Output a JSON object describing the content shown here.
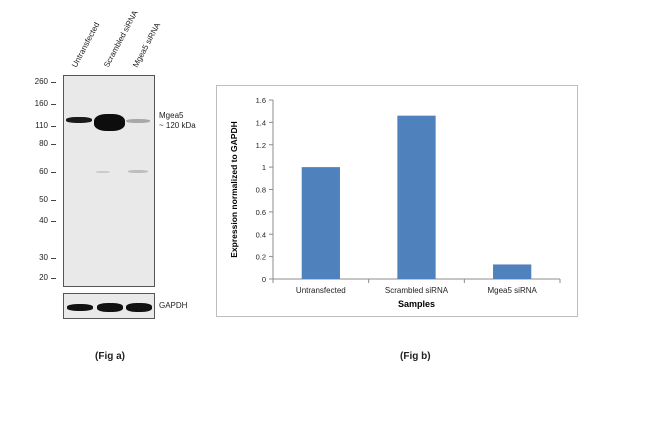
{
  "fig_a": {
    "lanes": [
      "Untransfected",
      "Scrambled siRNA",
      "Mgea5 siRNA"
    ],
    "mw_markers": [
      "260",
      "160",
      "110",
      "80",
      "60",
      "50",
      "40",
      "30",
      "20"
    ],
    "target_label": "Mgea5",
    "target_size": "~ 120 kDa",
    "loading_control": "GAPDH",
    "caption": "(Fig a)"
  },
  "fig_b": {
    "caption": "(Fig b)"
  },
  "chart_data": {
    "type": "bar",
    "categories": [
      "Untransfected",
      "Scrambled siRNA",
      "Mgea5  siRNA"
    ],
    "values": [
      1.0,
      1.46,
      0.13
    ],
    "xlabel": "Samples",
    "ylabel": "Expression normalized to GAPDH",
    "ylim": [
      0,
      1.6
    ],
    "yticks": [
      "0",
      "0.2",
      "0.4",
      "0.6",
      "0.8",
      "1",
      "1.2",
      "1.4",
      "1.6"
    ],
    "bar_color": "#4f81bd",
    "grid": false,
    "legend": "none"
  }
}
